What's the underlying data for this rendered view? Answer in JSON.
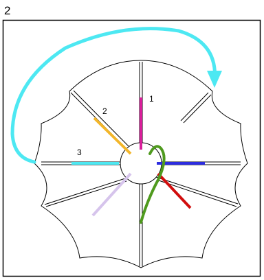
{
  "figure": {
    "number": "2",
    "colors": {
      "outline": "#000000",
      "arrow": "#4de8f2",
      "spoke_1": "#d81e9a",
      "spoke_2": "#f3b62a",
      "spoke_3": "#4de8f2",
      "spoke_blue": "#2c2ce0",
      "spoke_red": "#d10d0d",
      "spoke_lavender": "#d6c4ec",
      "curve": "#4f9a1e"
    },
    "labels": {
      "spoke_1": "1",
      "spoke_2": "2",
      "spoke_3": "3"
    }
  }
}
